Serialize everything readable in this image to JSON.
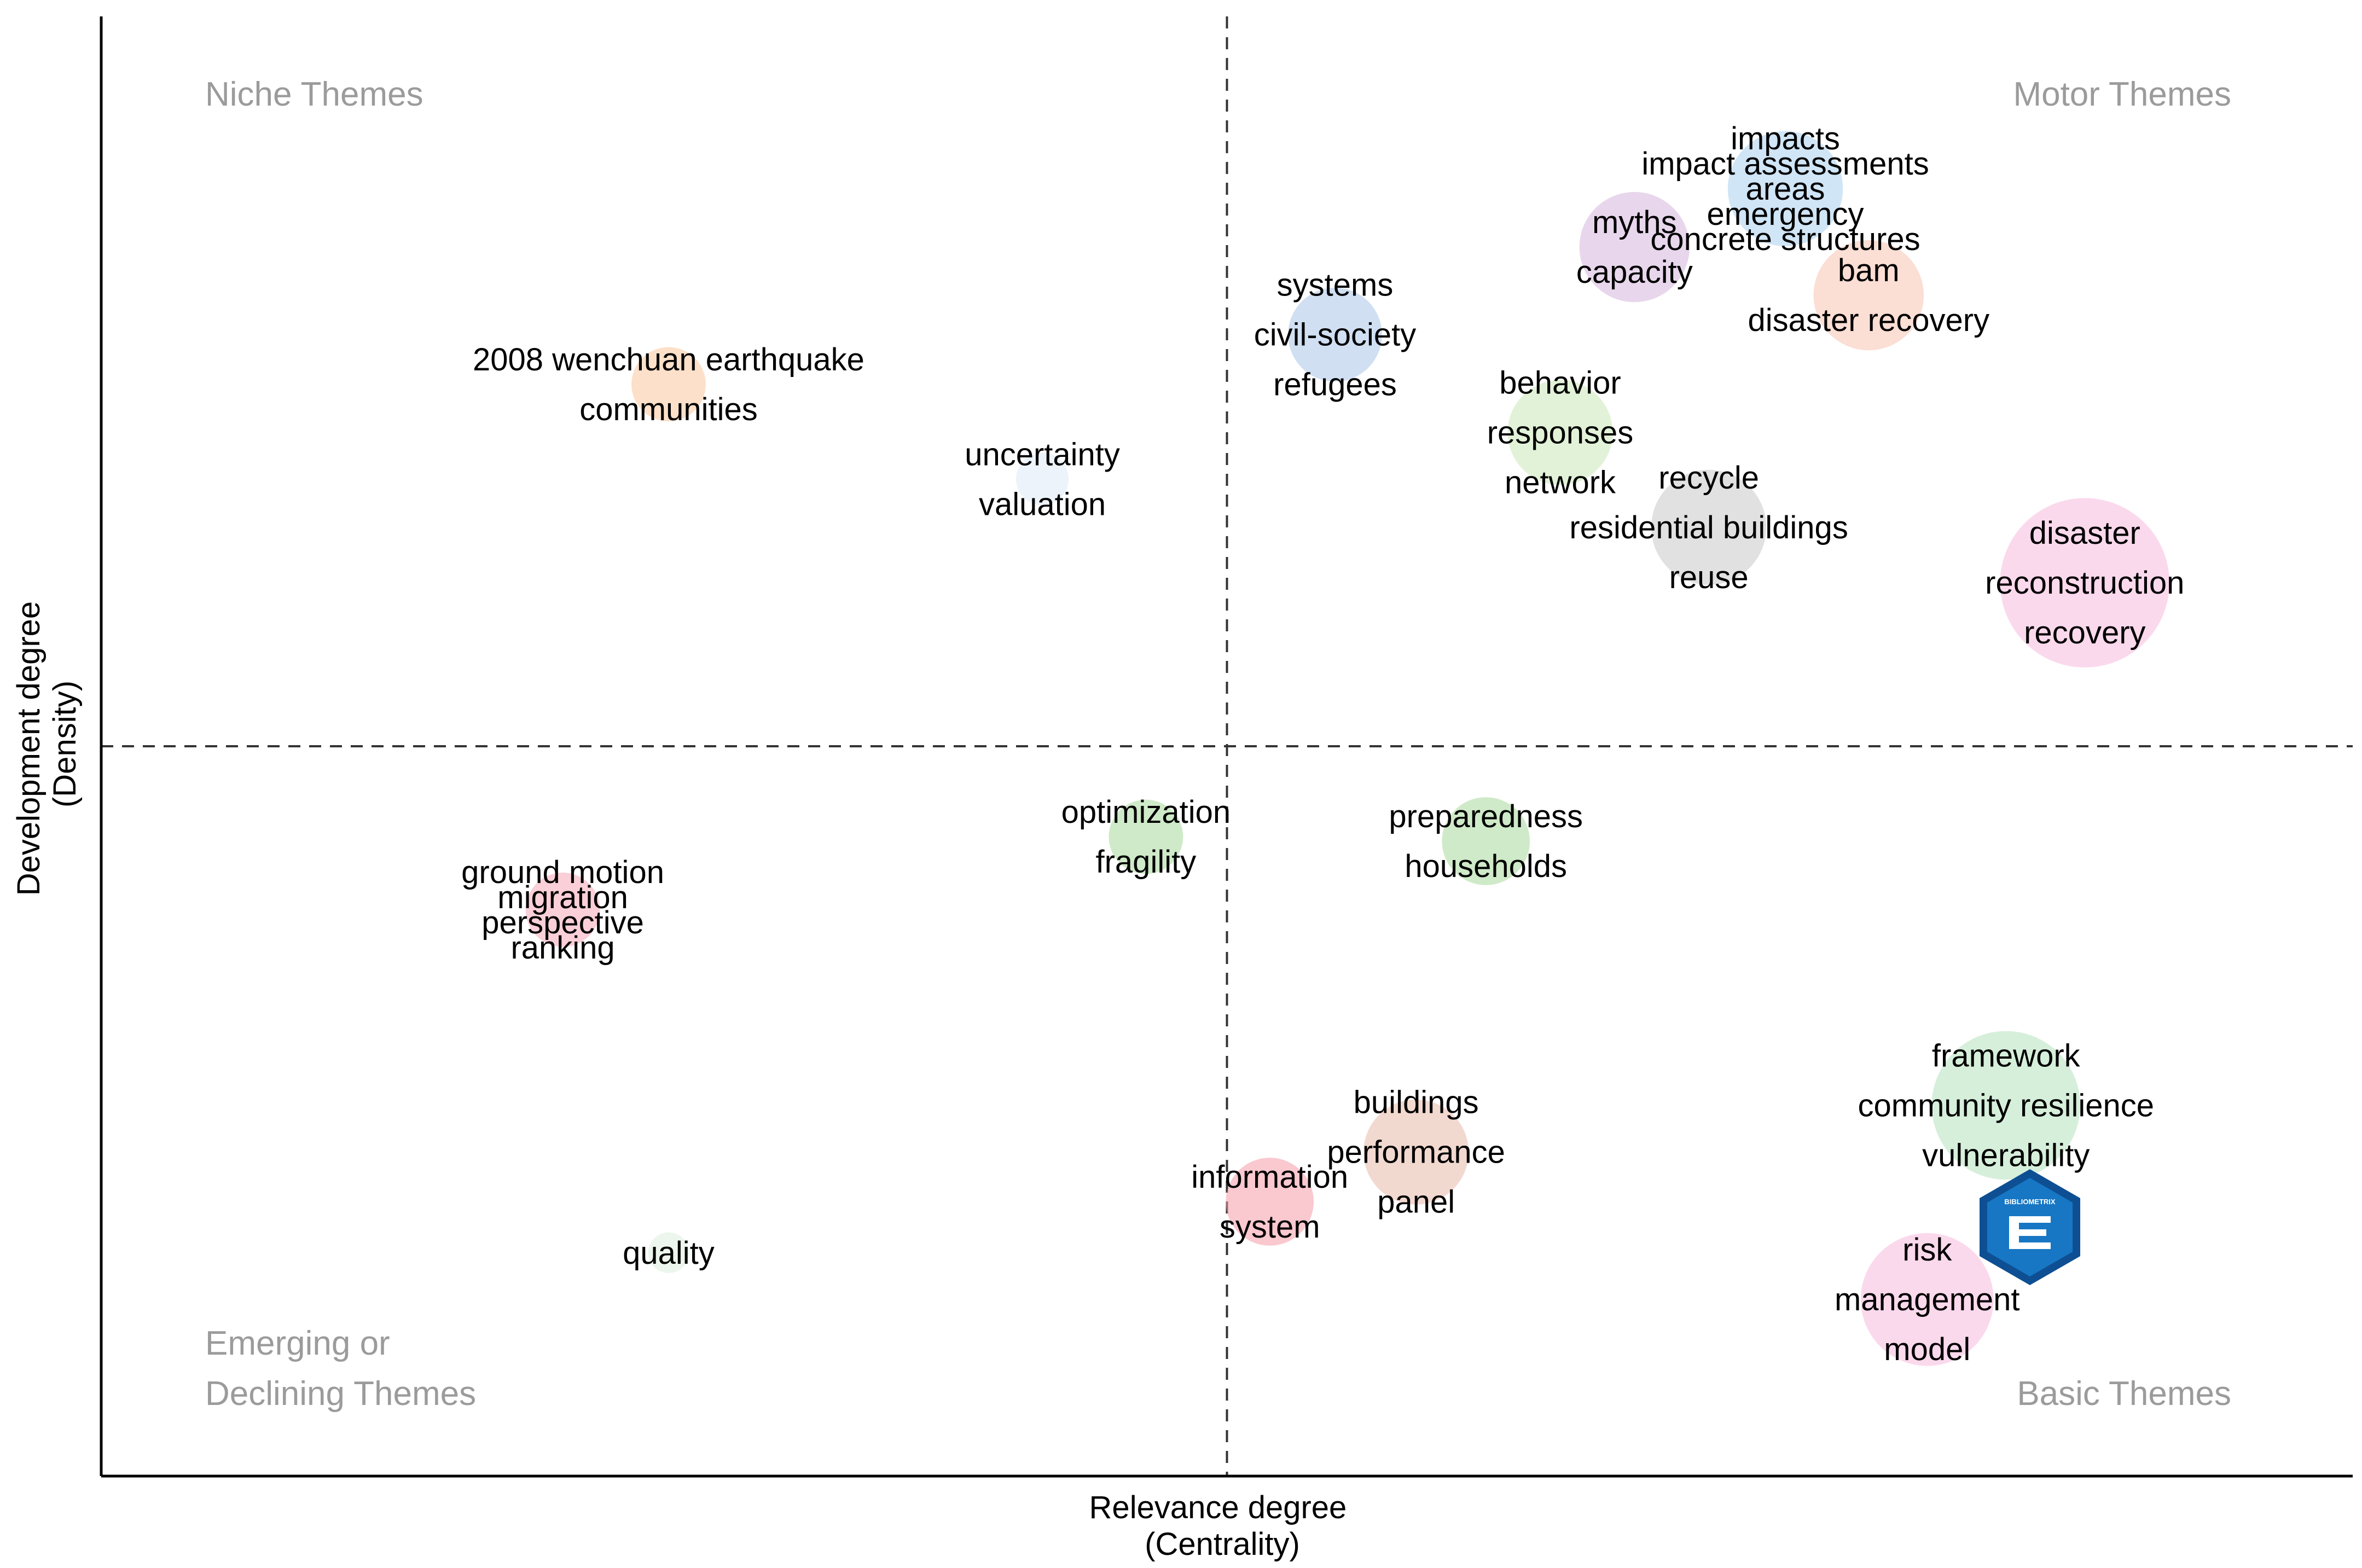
{
  "chart_data": {
    "type": "scatter",
    "subtype": "thematic-map",
    "xlabel": [
      "Relevance degree",
      "(Centrality)"
    ],
    "ylabel": [
      "Development degree",
      "(Density)"
    ],
    "xlim": [
      0,
      1
    ],
    "ylim": [
      0,
      1
    ],
    "divider": {
      "x": 0.5,
      "y": 0.5
    },
    "grid": false,
    "quadrant_labels": {
      "top_left": [
        "Niche Themes"
      ],
      "top_right": [
        "Motor Themes"
      ],
      "bottom_left": [
        "Emerging or",
        "Declining Themes"
      ],
      "bottom_right": [
        "Basic Themes"
      ]
    },
    "clusters": [
      {
        "x": 0.252,
        "y": 0.748,
        "size": 0.5,
        "color": "#fbc79d",
        "labels": [
          "2008 wenchuan earthquake",
          "communities"
        ]
      },
      {
        "x": 0.418,
        "y": 0.683,
        "size": 0.25,
        "color": "#dde9f7",
        "labels": [
          "uncertainty",
          "valuation"
        ]
      },
      {
        "x": 0.548,
        "y": 0.782,
        "size": 0.8,
        "color": "#a9c5e8",
        "labels": [
          "systems",
          "civil-society",
          "refugees"
        ]
      },
      {
        "x": 0.648,
        "y": 0.715,
        "size": 1.0,
        "color": "#cbe8b8",
        "labels": [
          "behavior",
          "responses",
          "network"
        ]
      },
      {
        "x": 0.681,
        "y": 0.842,
        "size": 1.1,
        "color": "#d5b6dd",
        "labels": [
          "myths",
          "capacity"
        ]
      },
      {
        "x": 0.748,
        "y": 0.882,
        "size": 1.2,
        "color": "#a9cfee",
        "labels": [
          "impacts",
          "impact assessments",
          "areas",
          "emergency",
          "concrete structures"
        ]
      },
      {
        "x": 0.785,
        "y": 0.809,
        "size": 1.1,
        "color": "#f8c3b1",
        "labels": [
          "bam",
          "disaster recovery"
        ]
      },
      {
        "x": 0.714,
        "y": 0.65,
        "size": 1.2,
        "color": "#c8c8c8",
        "labels": [
          "recycle",
          "residential buildings",
          "reuse"
        ]
      },
      {
        "x": 0.881,
        "y": 0.612,
        "size": 2.6,
        "color": "#f7b9dc",
        "labels": [
          "disaster",
          "reconstruction",
          "recovery"
        ]
      },
      {
        "x": 0.464,
        "y": 0.438,
        "size": 0.5,
        "color": "#a7d89b",
        "labels": [
          "optimization",
          "fragility"
        ]
      },
      {
        "x": 0.615,
        "y": 0.435,
        "size": 0.7,
        "color": "#a7d89b",
        "labels": [
          "preparedness",
          "households"
        ]
      },
      {
        "x": 0.205,
        "y": 0.388,
        "size": 0.5,
        "color": "#f5a7b8",
        "labels": [
          "ground motion",
          "migration",
          "perspective",
          "ranking"
        ]
      },
      {
        "x": 0.252,
        "y": 0.153,
        "size": 0.15,
        "color": "#dcefdc",
        "labels": [
          "quality"
        ]
      },
      {
        "x": 0.519,
        "y": 0.188,
        "size": 0.7,
        "color": "#f59ba8",
        "labels": [
          "information",
          "system"
        ]
      },
      {
        "x": 0.584,
        "y": 0.222,
        "size": 1.0,
        "color": "#e7b9aa",
        "labels": [
          "buildings",
          "performance",
          "panel"
        ]
      },
      {
        "x": 0.846,
        "y": 0.254,
        "size": 2.0,
        "color": "#b5e2bd",
        "labels": [
          "framework",
          "community resilience",
          "vulnerability"
        ]
      },
      {
        "x": 0.811,
        "y": 0.121,
        "size": 1.6,
        "color": "#f7b9dc",
        "labels": [
          "risk",
          "management",
          "model"
        ]
      }
    ]
  },
  "logo": {
    "text": "BIBLIOMETRIX",
    "color": "#1777c4",
    "dark": "#0e4f93"
  }
}
